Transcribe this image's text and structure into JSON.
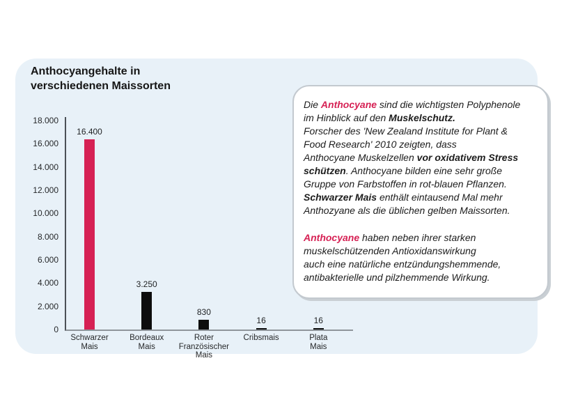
{
  "accent_color": "#d62154",
  "panel_color": "#e8f1f8",
  "chart": {
    "title": "Anthocyangehalte in\nverschiedenen Maissorten"
  },
  "chart_data": {
    "type": "bar",
    "title": "Anthocyangehalte in verschiedenen Maissorten",
    "categories": [
      "Schwarzer Mais",
      "Bordeaux Mais",
      "Roter Französischer Mais",
      "Cribsmais",
      "Plata Mais"
    ],
    "category_lines": [
      [
        "Schwarzer",
        "Mais"
      ],
      [
        "Bordeaux",
        "Mais"
      ],
      [
        "Roter",
        "Französischer",
        "Mais"
      ],
      [
        "Cribsmais"
      ],
      [
        "Plata",
        "Mais"
      ]
    ],
    "values": [
      16400,
      3250,
      830,
      16,
      16
    ],
    "value_labels": [
      "16.400",
      "3.250",
      "830",
      "16",
      "16"
    ],
    "bar_colors": [
      "#d62154",
      "#0d0d0d",
      "#0d0d0d",
      "#0d0d0d",
      "#0d0d0d"
    ],
    "xlabel": "",
    "ylabel": "",
    "ylim": [
      0,
      18000
    ],
    "ytick_step": 2000,
    "ytick_labels": [
      "0",
      "2.000",
      "4.000",
      "6.000",
      "8.000",
      "10.000",
      "12.000",
      "14.000",
      "16.000",
      "18.000"
    ],
    "grid": false,
    "legend": false
  },
  "infobox": {
    "paragraphs": [
      {
        "lines": [
          [
            {
              "t": "Die ",
              "s": "n"
            },
            {
              "t": "Anthocyane",
              "s": "p"
            },
            {
              "t": " sind die wichtigsten Polyphenole",
              "s": "n"
            }
          ],
          [
            {
              "t": "im Hinblick auf den ",
              "s": "n"
            },
            {
              "t": "Muskelschutz.",
              "s": "b"
            }
          ],
          [
            {
              "t": "Forscher des 'New Zealand Institute for Plant &",
              "s": "n"
            }
          ],
          [
            {
              "t": "Food Research' 2010 zeigten, dass",
              "s": "n"
            }
          ],
          [
            {
              "t": "Anthocyane Muskelzellen ",
              "s": "n"
            },
            {
              "t": "vor oxidativem Stress",
              "s": "b"
            }
          ],
          [
            {
              "t": "schützen",
              "s": "b"
            },
            {
              "t": ".  Anthocyane bilden eine sehr große",
              "s": "n"
            }
          ],
          [
            {
              "t": "Gruppe von Farbstoffen in rot-blauen Pflanzen.",
              "s": "n"
            }
          ],
          [
            {
              "t": "Schwarzer Mais",
              "s": "b"
            },
            {
              "t": "  enthält eintausend Mal mehr",
              "s": "n"
            }
          ],
          [
            {
              "t": "Anthozyane als die üblichen gelben Maissorten.",
              "s": "n"
            }
          ]
        ]
      },
      {
        "lines": [
          [
            {
              "t": "Anthocyane",
              "s": "p"
            },
            {
              "t": " haben neben ihrer starken",
              "s": "n"
            }
          ],
          [
            {
              "t": "muskelschützenden Antioxidanswirkung",
              "s": "n"
            }
          ],
          [
            {
              "t": "auch eine natürliche entzündungshemmende,",
              "s": "n"
            }
          ],
          [
            {
              "t": "antibakterielle und pilzhemmende Wirkung.",
              "s": "n"
            }
          ]
        ]
      }
    ]
  }
}
